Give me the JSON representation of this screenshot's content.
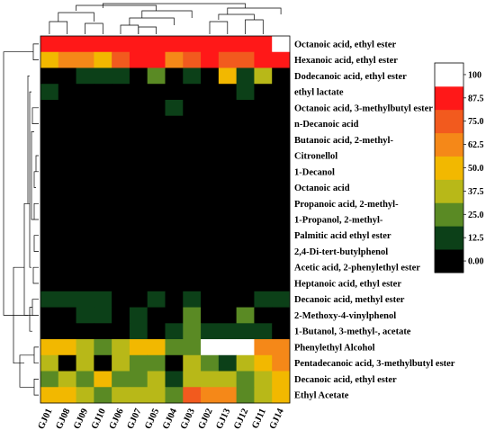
{
  "chart_data": {
    "type": "heatmap",
    "columns": [
      "GJ01",
      "GJ08",
      "GJ09",
      "GJ10",
      "GJ06",
      "GJ07",
      "GJ05",
      "GJ04",
      "GJ03",
      "GJ02",
      "GJ13",
      "GJ12",
      "GJ11",
      "GJ14"
    ],
    "rows": [
      "Octanoic acid, ethyl ester",
      "Hexanoic acid, ethyl ester",
      "Dodecanoic acid, ethyl ester",
      "ethyl lactate",
      "Octanoic acid, 3-methylbutyl ester",
      "n-Decanoic acid",
      "Butanoic acid, 2-methyl-",
      "Citronellol",
      "1-Decanol",
      "Octanoic acid",
      "Propanoic acid, 2-methyl-",
      "1-Propanol, 2-methyl-",
      "Palmitic acid ethyl ester",
      "2,4-Di-tert-butylphenol",
      "Acetic acid, 2-phenylethyl ester",
      "Heptanoic acid, ethyl ester",
      "Decanoic acid, methyl ester",
      "2-Methoxy-4-vinylphenol",
      "1-Butanol, 3-methyl-, acetate",
      "Phenylethyl Alcohol",
      "Pentadecanoic acid, 3-methylbutyl ester",
      "Decanoic acid, ethyl ester",
      "Ethyl Acetate"
    ],
    "values": [
      [
        90,
        90,
        90,
        90,
        90,
        90,
        90,
        90,
        90,
        90,
        90,
        95,
        90,
        100
      ],
      [
        55,
        70,
        70,
        55,
        75,
        88,
        88,
        72,
        80,
        90,
        78,
        80,
        90,
        90
      ],
      [
        8,
        8,
        18,
        18,
        18,
        8,
        30,
        8,
        18,
        8,
        50,
        18,
        45,
        8
      ],
      [
        18,
        8,
        8,
        8,
        8,
        8,
        8,
        8,
        8,
        8,
        8,
        18,
        8,
        8
      ],
      [
        8,
        8,
        8,
        8,
        8,
        8,
        8,
        18,
        8,
        8,
        8,
        8,
        8,
        8
      ],
      [
        8,
        8,
        8,
        8,
        8,
        8,
        8,
        8,
        8,
        8,
        8,
        8,
        8,
        8
      ],
      [
        8,
        8,
        8,
        8,
        8,
        8,
        8,
        8,
        8,
        8,
        8,
        8,
        8,
        8
      ],
      [
        8,
        8,
        8,
        8,
        8,
        8,
        8,
        8,
        8,
        8,
        8,
        8,
        8,
        8
      ],
      [
        8,
        8,
        8,
        8,
        8,
        8,
        8,
        8,
        8,
        8,
        8,
        8,
        8,
        8
      ],
      [
        8,
        8,
        8,
        8,
        8,
        8,
        8,
        8,
        8,
        8,
        8,
        8,
        8,
        8
      ],
      [
        8,
        8,
        8,
        8,
        8,
        8,
        8,
        8,
        8,
        8,
        8,
        8,
        8,
        8
      ],
      [
        8,
        8,
        8,
        8,
        8,
        8,
        8,
        8,
        8,
        8,
        8,
        8,
        8,
        8
      ],
      [
        8,
        8,
        8,
        8,
        8,
        8,
        8,
        8,
        8,
        8,
        8,
        8,
        8,
        8
      ],
      [
        8,
        8,
        8,
        8,
        8,
        8,
        8,
        8,
        8,
        8,
        8,
        8,
        8,
        8
      ],
      [
        8,
        8,
        8,
        8,
        8,
        8,
        8,
        8,
        8,
        8,
        8,
        8,
        8,
        8
      ],
      [
        8,
        8,
        8,
        8,
        8,
        8,
        8,
        8,
        8,
        8,
        8,
        8,
        8,
        8
      ],
      [
        18,
        18,
        18,
        18,
        8,
        8,
        18,
        8,
        18,
        8,
        8,
        8,
        18,
        18
      ],
      [
        8,
        8,
        18,
        18,
        8,
        18,
        8,
        8,
        30,
        8,
        8,
        35,
        8,
        8
      ],
      [
        8,
        8,
        8,
        8,
        8,
        18,
        8,
        18,
        30,
        18,
        18,
        18,
        18,
        8
      ],
      [
        50,
        55,
        45,
        30,
        45,
        55,
        55,
        35,
        30,
        100,
        100,
        100,
        70,
        70
      ],
      [
        40,
        8,
        40,
        8,
        40,
        30,
        30,
        8,
        40,
        35,
        20,
        40,
        60,
        70
      ],
      [
        30,
        45,
        30,
        50,
        30,
        30,
        45,
        18,
        40,
        45,
        45,
        30,
        40,
        60
      ],
      [
        50,
        50,
        45,
        30,
        45,
        40,
        40,
        30,
        80,
        70,
        65,
        25,
        45,
        55
      ]
    ],
    "colorbar": {
      "ticks": [
        "0.00",
        "12.5",
        "25.0",
        "37.5",
        "50.0",
        "62.5",
        "75.0",
        "87.5",
        "100"
      ],
      "colors": [
        "#000000",
        "#0c4018",
        "#5a8a24",
        "#b8b818",
        "#f2b800",
        "#f58818",
        "#f25a1e",
        "#ff1818",
        "#ffffff"
      ]
    },
    "dendrograms": {
      "row": true,
      "column": true
    }
  }
}
